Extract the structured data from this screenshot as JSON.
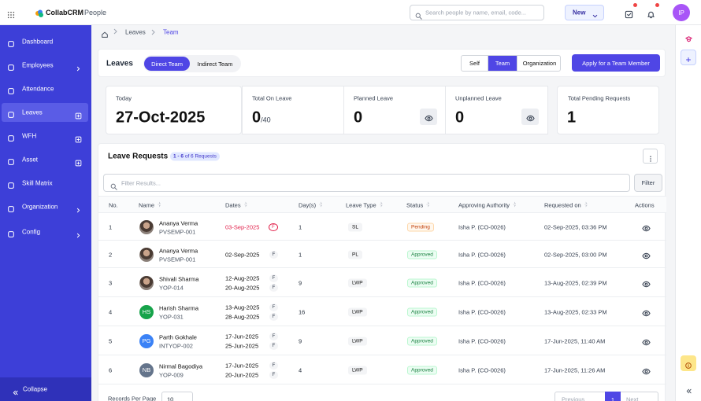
{
  "topbar": {
    "brand": "CollabCRM",
    "module": "People",
    "search_placeholder": "Search people by name, email, code...",
    "new_button": "New",
    "user_initials": "IP"
  },
  "sidebar": {
    "items": [
      "Dashboard",
      "Employees",
      "Attendance",
      "Leaves",
      "WFH",
      "Asset",
      "Skill Matrix",
      "Organization",
      "Config"
    ],
    "collapse": "Collapse"
  },
  "breadcrumb": [
    "Leaves",
    "Team"
  ],
  "leaves_bar": {
    "title": "Leaves",
    "view_tabs": [
      "Direct Team",
      "Indirect Team"
    ],
    "scope_tabs": [
      "Self",
      "Team",
      "Organization"
    ],
    "apply_button": "Apply for a Team Member"
  },
  "stats": [
    {
      "label": "Today",
      "value": "27-Oct-2025"
    },
    {
      "label": "Total On Leave",
      "value": "0",
      "suffix": "/40"
    },
    {
      "label": "Planned Leave",
      "value": "0"
    },
    {
      "label": "Unplanned Leave",
      "value": "0"
    },
    {
      "label": "Total Pending Requests",
      "value": "1"
    }
  ],
  "requests": {
    "title": "Leave Requests",
    "range": "1 - 6",
    "range_total": "of 6 Requests",
    "filter_placeholder": "Filter Results...",
    "filter_button": "Filter",
    "columns": [
      "No.",
      "Name",
      "Dates",
      "Day(s)",
      "Leave Type",
      "Status",
      "Approving Authority",
      "Requested on",
      "Actions"
    ],
    "rows": [
      {
        "no": "1",
        "name": "Ananya Verma",
        "code": "PVSEMP-001",
        "dates": [
          {
            "date": "03-Sep-2025",
            "flag": "F"
          }
        ],
        "days": "1",
        "type": "SL",
        "status": "Pending",
        "authority": "Isha P. (CO-0026)",
        "requested": "02-Sep-2025, 03:36 PM"
      },
      {
        "no": "2",
        "name": "Ananya Verma",
        "code": "PVSEMP-001",
        "dates": [
          {
            "date": "02-Sep-2025",
            "flag": "F"
          }
        ],
        "days": "1",
        "type": "PL",
        "status": "Approved",
        "authority": "Isha P. (CO-0026)",
        "requested": "02-Sep-2025, 03:00 PM"
      },
      {
        "no": "3",
        "name": "Shivali Sharma",
        "code": "YOP-014",
        "dates": [
          {
            "date": "12-Aug-2025",
            "flag": "F"
          },
          {
            "date": "20-Aug-2025",
            "flag": "F"
          }
        ],
        "days": "9",
        "type": "LWP",
        "status": "Approved",
        "authority": "Isha P. (CO-0026)",
        "requested": "13-Aug-2025, 02:39 PM"
      },
      {
        "no": "4",
        "initials": "HS",
        "name": "Harish Sharma",
        "code": "YOP-031",
        "dates": [
          {
            "date": "13-Aug-2025",
            "flag": "F"
          },
          {
            "date": "28-Aug-2025",
            "flag": "F"
          }
        ],
        "days": "16",
        "type": "LWP",
        "status": "Approved",
        "authority": "Isha P. (CO-0026)",
        "requested": "13-Aug-2025, 02:33 PM"
      },
      {
        "no": "5",
        "initials": "PG",
        "name": "Parth Gokhale",
        "code": "INTYOP-002",
        "dates": [
          {
            "date": "17-Jun-2025",
            "flag": "F"
          },
          {
            "date": "25-Jun-2025",
            "flag": "F"
          }
        ],
        "days": "9",
        "type": "LWP",
        "status": "Approved",
        "authority": "Isha P. (CO-0026)",
        "requested": "17-Jun-2025, 11:40 AM"
      },
      {
        "no": "6",
        "initials": "NB",
        "name": "Nirmal Bagodiya",
        "code": "YOP-009",
        "dates": [
          {
            "date": "17-Jun-2025",
            "flag": "F"
          },
          {
            "date": "20-Jun-2025",
            "flag": "F"
          }
        ],
        "days": "4",
        "type": "LWP",
        "status": "Approved",
        "authority": "Isha P. (CO-0026)",
        "requested": "17-Jun-2025, 11:26 AM"
      }
    ]
  },
  "pagination": {
    "records_label": "Records Per Page",
    "page_size": "10",
    "previous": "Previous",
    "page": "1",
    "next": "Next"
  }
}
